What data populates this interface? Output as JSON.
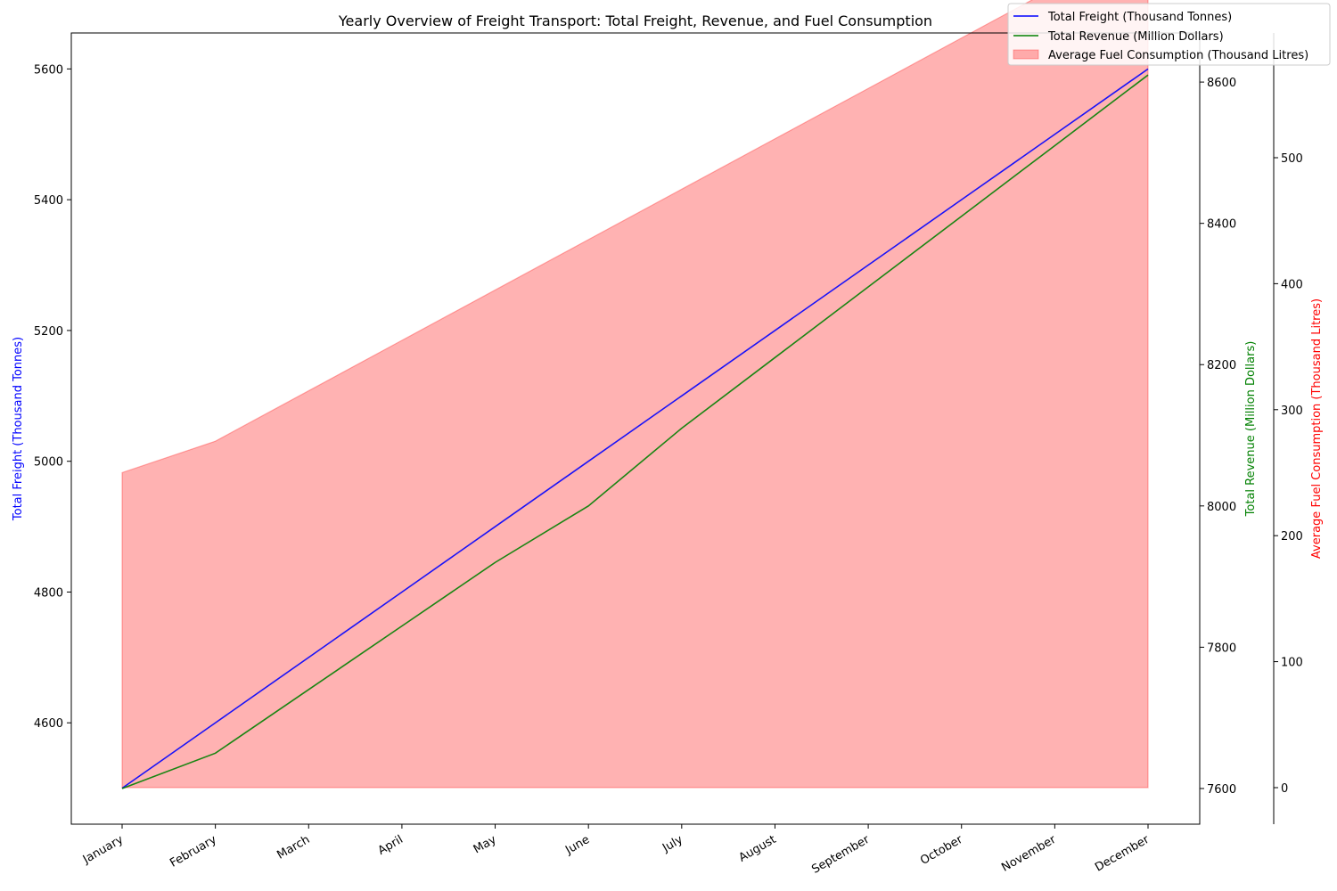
{
  "chart_data": {
    "type": "line",
    "title": "Yearly Overview of Freight Transport: Total Freight, Revenue, and Fuel Consumption",
    "categories": [
      "January",
      "February",
      "March",
      "April",
      "May",
      "June",
      "July",
      "August",
      "September",
      "October",
      "November",
      "December"
    ],
    "series": [
      {
        "name": "Total Freight (Thousand Tonnes)",
        "axis": "left",
        "type": "line",
        "color": "#0000ff",
        "values": [
          4500,
          4600,
          4700,
          4800,
          4900,
          5000,
          5100,
          5200,
          5300,
          5400,
          5500,
          5600
        ]
      },
      {
        "name": "Total Revenue (Million Dollars)",
        "axis": "right",
        "type": "line",
        "color": "#008000",
        "values": [
          7600,
          7650,
          7740,
          7830,
          7920,
          8000,
          8110,
          8210,
          8310,
          8410,
          8510,
          8610
        ]
      },
      {
        "name": "Average Fuel Consumption (Thousand Litres)",
        "axis": "right2",
        "type": "area",
        "color": "#ff0000",
        "values": [
          250,
          275,
          315,
          355,
          395,
          435,
          475,
          515,
          555,
          595,
          635,
          675
        ]
      }
    ],
    "axes": {
      "left": {
        "label": "Total Freight (Thousand Tonnes)",
        "label_color": "#0000ff",
        "ylim": [
          4445,
          5655
        ],
        "ticks": [
          4600,
          4800,
          5000,
          5200,
          5400,
          5600
        ]
      },
      "right": {
        "label": "Total Revenue (Million Dollars)",
        "label_color": "#008000",
        "ylim": [
          7549.5,
          8669.5
        ],
        "ticks": [
          7600,
          7800,
          8000,
          8200,
          8400,
          8600
        ]
      },
      "right2": {
        "label": "Average Fuel Consumption (Thousand Litres)",
        "label_color": "#ff0000",
        "ylim": [
          -29,
          599
        ],
        "ticks": [
          0,
          100,
          200,
          300,
          400,
          500
        ]
      }
    },
    "legend": {
      "placement": "top-right"
    },
    "grid": false
  }
}
